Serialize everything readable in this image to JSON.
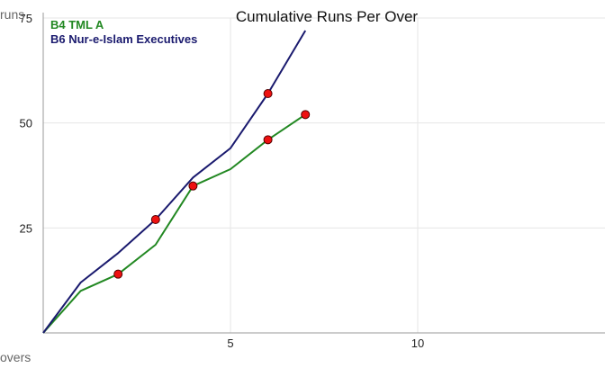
{
  "chart_data": {
    "type": "line",
    "title": "Cumulative Runs Per Over",
    "xlabel": "overs",
    "ylabel": "runs",
    "xlim": [
      0,
      15
    ],
    "ylim": [
      0,
      75
    ],
    "x_ticks": [
      5,
      10
    ],
    "y_ticks": [
      25,
      50,
      75
    ],
    "grid": true,
    "legend_position": "top-left",
    "series": [
      {
        "name": "B4 TML A",
        "color": "#228822",
        "x": [
          0,
          1,
          2,
          3,
          4,
          5,
          6,
          7
        ],
        "values": [
          0,
          10,
          14,
          21,
          35,
          39,
          46,
          52
        ],
        "wicket_overs": [
          2,
          4,
          6,
          7
        ]
      },
      {
        "name": "B6 Nur-e-Islam Executives",
        "color": "#1a1a6e",
        "x": [
          0,
          1,
          2,
          3,
          4,
          5,
          6,
          7
        ],
        "values": [
          0,
          12,
          19,
          27,
          37,
          44,
          57,
          72
        ],
        "wicket_overs": [
          3,
          6
        ]
      }
    ],
    "marker_color": "#ee1111"
  }
}
